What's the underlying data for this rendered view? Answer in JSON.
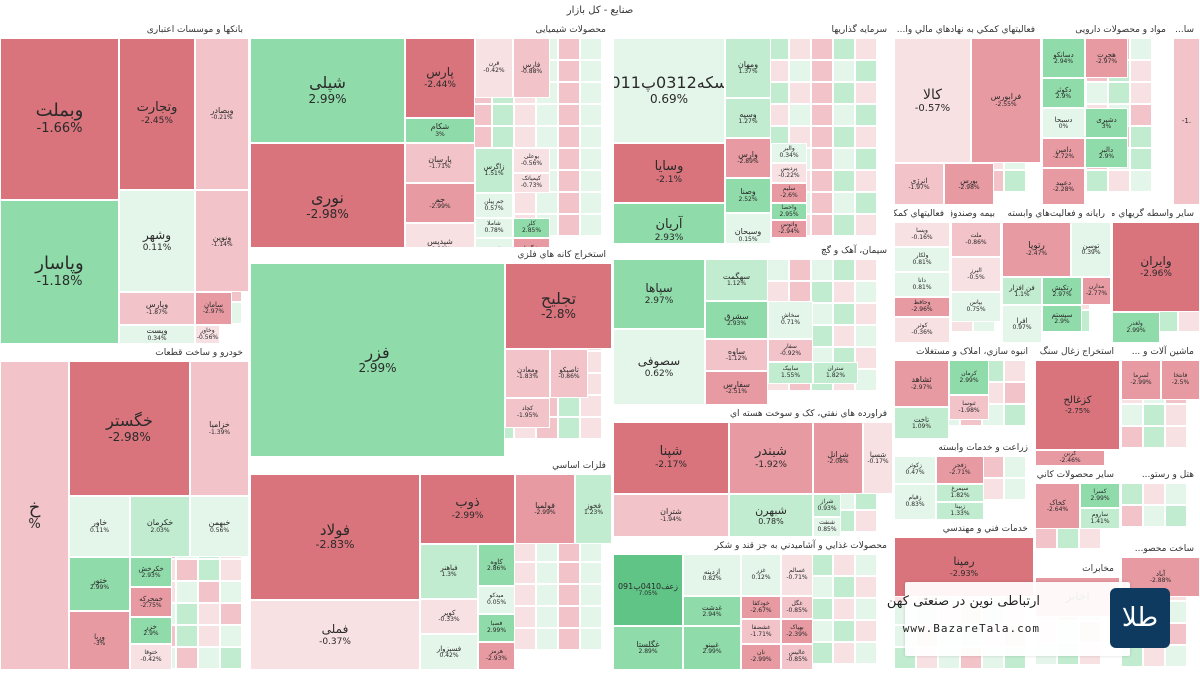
{
  "page_title": "صنایع - کل بازار",
  "sectors": [
    {
      "id": "banks",
      "label": "بانکها و موسسات اعتباری",
      "tiles": [
        {
          "n": "وبملت",
          "p": "-1.66%",
          "c": "r3",
          "fs": 18
        },
        {
          "n": "وپاسار",
          "p": "-1.18%",
          "c": "g2",
          "fs": 18
        },
        {
          "n": "وتجارت",
          "p": "-2.45%",
          "c": "r3",
          "fs": 13
        },
        {
          "n": "وبصادر",
          "p": "-0.21%",
          "c": "r1",
          "fs": 8
        },
        {
          "n": "وشهر",
          "p": "0.11%",
          "c": "g0",
          "fs": 12
        },
        {
          "n": "ونوین",
          "p": "-1.14%",
          "c": "r1",
          "fs": 8
        },
        {
          "n": "وپارس",
          "p": "-1.87%",
          "c": "r1",
          "fs": 8
        },
        {
          "n": "سامان",
          "p": "-2.97%",
          "c": "r2",
          "fs": 7
        },
        {
          "n": "وپست",
          "p": "0.34%",
          "c": "g0",
          "fs": 8
        },
        {
          "n": "وخاور",
          "p": "-0.56%",
          "c": "r0",
          "fs": 6
        }
      ]
    },
    {
      "id": "chem",
      "label": "محصولات شیمیایی",
      "tiles": [
        {
          "n": "شپلی",
          "p": "2.99%",
          "c": "g2",
          "fs": 16
        },
        {
          "n": "نوری",
          "p": "-2.98%",
          "c": "r3",
          "fs": 16
        },
        {
          "n": "پارس",
          "p": "-2.44%",
          "c": "r3",
          "fs": 12
        },
        {
          "n": "شکام",
          "p": "3%",
          "c": "g2",
          "fs": 8
        },
        {
          "n": "پارسان",
          "p": "-1.71%",
          "c": "r1",
          "fs": 8
        },
        {
          "n": "جم",
          "p": "-2.99%",
          "c": "r2",
          "fs": 8
        },
        {
          "n": "شپدیس",
          "p": "-0.39%",
          "c": "r0",
          "fs": 8
        },
        {
          "n": "فارس",
          "p": "-0.88%",
          "c": "r1",
          "fs": 7
        },
        {
          "n": "قرن",
          "p": "-0.42%",
          "c": "r0",
          "fs": 6
        },
        {
          "n": "زاگرس",
          "p": "1.51%",
          "c": "g1",
          "fs": 7
        },
        {
          "n": "بوعلی",
          "p": "-0.56%",
          "c": "r0",
          "fs": 6
        },
        {
          "n": "کیمیاتک",
          "p": "-0.73%",
          "c": "r0",
          "fs": 6
        },
        {
          "n": "جم پیلن",
          "p": "0.57%",
          "c": "g0",
          "fs": 6
        },
        {
          "n": "شاملا",
          "p": "0.78%",
          "c": "g0",
          "fs": 6
        },
        {
          "n": "شیمیر",
          "p": "0.83%",
          "c": "g0",
          "fs": 6
        },
        {
          "n": "کلر",
          "p": "2.85%",
          "c": "g2",
          "fs": 6
        },
        {
          "n": "شگویا",
          "p": "-2.24%",
          "c": "r2",
          "fs": 6
        }
      ]
    },
    {
      "id": "invest",
      "label": "سرمایه گذاریها",
      "tiles": [
        {
          "n": "سکه0312پ011",
          "p": "0.69%",
          "c": "g0",
          "fs": 16
        },
        {
          "n": "وسایا",
          "p": "-2.1%",
          "c": "r3",
          "fs": 13
        },
        {
          "n": "آریان",
          "p": "2.93%",
          "c": "g2",
          "fs": 13
        },
        {
          "n": "ومهان",
          "p": "1.37%",
          "c": "g1",
          "fs": 8
        },
        {
          "n": "وسپه",
          "p": "1.27%",
          "c": "g1",
          "fs": 8
        },
        {
          "n": "وارس",
          "p": "-2.89%",
          "c": "r2",
          "fs": 8
        },
        {
          "n": "وصنا",
          "p": "2.52%",
          "c": "g2",
          "fs": 8
        },
        {
          "n": "وسبحان",
          "p": "0.15%",
          "c": "g0",
          "fs": 8
        },
        {
          "n": "والبر",
          "p": "0.34%",
          "c": "g0",
          "fs": 6
        },
        {
          "n": "پردیس",
          "p": "-0.22%",
          "c": "r0",
          "fs": 6
        },
        {
          "n": "سلیم",
          "p": "-2.6%",
          "c": "r2",
          "fs": 6
        },
        {
          "n": "واحصا",
          "p": "2.95%",
          "c": "g2",
          "fs": 6
        },
        {
          "n": "وآتوس",
          "p": "-2.94%",
          "c": "r2",
          "fs": 6
        }
      ]
    },
    {
      "id": "health",
      "label": "فعالیتهاي کمکي به نهادهاي مالي وا...",
      "tiles": [
        {
          "n": "کالا",
          "p": "-0.57%",
          "c": "r0",
          "fs": 14
        },
        {
          "n": "فرابورس",
          "p": "-2.55%",
          "c": "r2",
          "fs": 8
        },
        {
          "n": "انرژی",
          "p": "-1.97%",
          "c": "r1",
          "fs": 7
        },
        {
          "n": "بورس",
          "p": "-2.98%",
          "c": "r2",
          "fs": 7
        }
      ]
    },
    {
      "id": "pharma",
      "label": "مواد و محصولات دارویی",
      "tiles": [
        {
          "n": "دسانکو",
          "p": "2.94%",
          "c": "g2",
          "fs": 7
        },
        {
          "n": "هجرت",
          "p": "-2.97%",
          "c": "r2",
          "fs": 7
        },
        {
          "n": "دکوثر",
          "p": "2.9%",
          "c": "g2",
          "fs": 7
        },
        {
          "n": "دسبحا",
          "p": "0%",
          "c": "g0",
          "fs": 7
        },
        {
          "n": "دشیری",
          "p": "3%",
          "c": "g2",
          "fs": 7
        },
        {
          "n": "دامین",
          "p": "-2.72%",
          "c": "r2",
          "fs": 7
        },
        {
          "n": "دالبر",
          "p": "2.9%",
          "c": "g2",
          "fs": 7
        },
        {
          "n": "دعبید",
          "p": "-2.28%",
          "c": "r2",
          "fs": 7
        }
      ]
    },
    {
      "id": "misc",
      "label": "سا...",
      "tiles": [
        {
          "n": "",
          "p": "-1.",
          "c": "r1",
          "fs": 10
        }
      ]
    },
    {
      "id": "mining",
      "label": "استخراج کانه هاي فلزي",
      "tiles": [
        {
          "n": "فزر",
          "p": "2.99%",
          "c": "g2",
          "fs": 16
        },
        {
          "n": "تجلیح",
          "p": "-2.8%",
          "c": "r3",
          "fs": 16
        },
        {
          "n": "ومعادن",
          "p": "-1.83%",
          "c": "r1",
          "fs": 7
        },
        {
          "n": "تاصیکو",
          "p": "-0.86%",
          "c": "r1",
          "fs": 7
        },
        {
          "n": "کچاد",
          "p": "-1.95%",
          "c": "r1",
          "fs": 6
        }
      ]
    },
    {
      "id": "cement",
      "label": "سیمان، آهک و گچ",
      "tiles": [
        {
          "n": "سپاها",
          "p": "2.97%",
          "c": "g2",
          "fs": 12
        },
        {
          "n": "سصوفی",
          "p": "0.62%",
          "c": "g0",
          "fs": 12
        },
        {
          "n": "سهگمت",
          "p": "1.12%",
          "c": "g1",
          "fs": 8
        },
        {
          "n": "سشرق",
          "p": "2.93%",
          "c": "g2",
          "fs": 8
        },
        {
          "n": "ساوه",
          "p": "-1.12%",
          "c": "r1",
          "fs": 8
        },
        {
          "n": "سفارس",
          "p": "-2.51%",
          "c": "r2",
          "fs": 8
        },
        {
          "n": "سخاش",
          "p": "0.71%",
          "c": "g0",
          "fs": 6
        },
        {
          "n": "سفار",
          "p": "-0.92%",
          "c": "r1",
          "fs": 6
        },
        {
          "n": "سابیک",
          "p": "1.55%",
          "c": "g1",
          "fs": 6
        },
        {
          "n": "ستران",
          "p": "1.82%",
          "c": "g1",
          "fs": 6
        }
      ]
    },
    {
      "id": "auto",
      "label": "خودرو و ساخت قطعات",
      "tiles": [
        {
          "n": "خ",
          "p": "%",
          "c": "r1",
          "fs": 18
        },
        {
          "n": "خگستر",
          "p": "-2.98%",
          "c": "r3",
          "fs": 16
        },
        {
          "n": "خزامیا",
          "p": "-1.39%",
          "c": "r1",
          "fs": 8
        },
        {
          "n": "خاور",
          "p": "0.11%",
          "c": "g0",
          "fs": 8
        },
        {
          "n": "خکرمان",
          "p": "2.03%",
          "c": "g1",
          "fs": 8
        },
        {
          "n": "خبهمن",
          "p": "0.56%",
          "c": "g0",
          "fs": 8
        },
        {
          "n": "ختور",
          "p": "2.99%",
          "c": "g2",
          "fs": 8
        },
        {
          "n": "خکرخش",
          "p": "2.93%",
          "c": "g2",
          "fs": 7
        },
        {
          "n": "خمحرکه",
          "p": "-2.75%",
          "c": "r2",
          "fs": 7
        },
        {
          "n": "وربا",
          "p": "-3%",
          "c": "r2",
          "fs": 7
        },
        {
          "n": "خزر",
          "p": "2.9%",
          "c": "g2",
          "fs": 7
        },
        {
          "n": "ختوقا",
          "p": "-0.42%",
          "c": "r0",
          "fs": 6
        }
      ]
    },
    {
      "id": "metals",
      "label": "فلزات اساسي",
      "tiles": [
        {
          "n": "فولاد",
          "p": "-2.83%",
          "c": "r3",
          "fs": 15
        },
        {
          "n": "فملی",
          "p": "-0.37%",
          "c": "r0",
          "fs": 12
        },
        {
          "n": "ذوب",
          "p": "-2.99%",
          "c": "r3",
          "fs": 13
        },
        {
          "n": "فولمیا",
          "p": "-2.99%",
          "c": "r2",
          "fs": 8
        },
        {
          "n": "فخوز",
          "p": "1.23%",
          "c": "g1",
          "fs": 7
        },
        {
          "n": "فباهنر",
          "p": "1.3%",
          "c": "g1",
          "fs": 7
        },
        {
          "n": "کاوه",
          "p": "2.86%",
          "c": "g2",
          "fs": 7
        },
        {
          "n": "کویر",
          "p": "-0.33%",
          "c": "r0",
          "fs": 7
        },
        {
          "n": "میدکو",
          "p": "0.05%",
          "c": "g0",
          "fs": 6
        },
        {
          "n": "فسبزوار",
          "p": "0.42%",
          "c": "g0",
          "fs": 7
        },
        {
          "n": "فصبا",
          "p": "2.99%",
          "c": "g2",
          "fs": 6
        },
        {
          "n": "هرمز",
          "p": "-2.93%",
          "c": "r2",
          "fs": 6
        }
      ]
    },
    {
      "id": "oil",
      "label": "فراورده هاي نفتي، کک و سوخت هسته اي",
      "tiles": [
        {
          "n": "شپنا",
          "p": "-2.17%",
          "c": "r3",
          "fs": 13
        },
        {
          "n": "شبندر",
          "p": "-1.92%",
          "c": "r2",
          "fs": 13
        },
        {
          "n": "شرانل",
          "p": "-2.08%",
          "c": "r2",
          "fs": 8
        },
        {
          "n": "شسپا",
          "p": "-0.17%",
          "c": "r0",
          "fs": 7
        },
        {
          "n": "شتران",
          "p": "-1.94%",
          "c": "r1",
          "fs": 8
        },
        {
          "n": "شبهرن",
          "p": "0.78%",
          "c": "g1",
          "fs": 11
        },
        {
          "n": "شراز",
          "p": "0.93%",
          "c": "g1",
          "fs": 6
        },
        {
          "n": "شنفت",
          "p": "0.85%",
          "c": "g0",
          "fs": 6
        }
      ]
    },
    {
      "id": "food",
      "label": "محصولات غذايي و آشاميدني به جز قند و شکر",
      "tiles": [
        {
          "n": "زعف0410پ091",
          "p": "7.05%",
          "c": "g3",
          "fs": 8
        },
        {
          "n": "غگلستا",
          "p": "2.89%",
          "c": "g2",
          "fs": 8
        },
        {
          "n": "ازدینه",
          "p": "0.82%",
          "c": "g0",
          "fs": 7
        },
        {
          "n": "غدشت",
          "p": "2.94%",
          "c": "g2",
          "fs": 7
        },
        {
          "n": "غبینو",
          "p": "2.99%",
          "c": "g2",
          "fs": 7
        },
        {
          "n": "غزر",
          "p": "0.12%",
          "c": "g0",
          "fs": 6
        },
        {
          "n": "خودکفا",
          "p": "-2.67%",
          "c": "r2",
          "fs": 6
        },
        {
          "n": "غشضفا",
          "p": "-1.71%",
          "c": "r1",
          "fs": 6
        },
        {
          "n": "نان",
          "p": "-2.99%",
          "c": "r2",
          "fs": 6
        },
        {
          "n": "غسالم",
          "p": "-0.71%",
          "c": "r0",
          "fs": 6
        },
        {
          "n": "غگل",
          "p": "-0.85%",
          "c": "r1",
          "fs": 6
        },
        {
          "n": "بهپاک",
          "p": "-2.39%",
          "c": "r2",
          "fs": 6
        },
        {
          "n": "عالیس",
          "p": "-0.85%",
          "c": "r1",
          "fs": 6
        }
      ]
    },
    {
      "id": "brokers",
      "label": "فعالیتهاي کمکي به نهادهاي مالي واسط",
      "tiles": [
        {
          "n": "ویسا",
          "p": "-0.16%",
          "c": "r0",
          "fs": 6
        },
        {
          "n": "ولکار",
          "p": "0.81%",
          "c": "g0",
          "fs": 6
        },
        {
          "n": "دانا",
          "p": "0.81%",
          "c": "g0",
          "fs": 6
        },
        {
          "n": "وحافظ",
          "p": "-2.96%",
          "c": "r2",
          "fs": 6
        },
        {
          "n": "کوثر",
          "p": "-0.36%",
          "c": "r0",
          "fs": 6
        }
      ]
    },
    {
      "id": "insurance",
      "label": "بیمه وصندوق بازنشستگي",
      "tiles": [
        {
          "n": "ملت",
          "p": "-0.86%",
          "c": "r1",
          "fs": 6
        },
        {
          "n": "البرز",
          "p": "-0.5%",
          "c": "r0",
          "fs": 6
        },
        {
          "n": "بپاس",
          "p": "0.75%",
          "c": "g0",
          "fs": 6
        }
      ]
    },
    {
      "id": "it",
      "label": "رايانه و فعاليت‌هاي وابسته",
      "tiles": [
        {
          "n": "رتوپا",
          "p": "-2.47%",
          "c": "r2",
          "fs": 9
        },
        {
          "n": "فن افزار",
          "p": "1.1%",
          "c": "g1",
          "fs": 7
        },
        {
          "n": "افرا",
          "p": "0.97%",
          "c": "g0",
          "fs": 7
        },
        {
          "n": "رتکیش",
          "p": "2.97%",
          "c": "g2",
          "fs": 7
        },
        {
          "n": "سیستم",
          "p": "2.9%",
          "c": "g2",
          "fs": 7
        },
        {
          "n": "توسن",
          "p": "0.39%",
          "c": "g0",
          "fs": 7
        },
        {
          "n": "مدارن",
          "p": "-2.77%",
          "c": "r2",
          "fs": 6
        }
      ]
    },
    {
      "id": "other_fin",
      "label": "ساير واسطه گريهاي مالي",
      "tiles": [
        {
          "n": "وایران",
          "p": "-2.96%",
          "c": "r3",
          "fs": 12
        },
        {
          "n": "ولغدر",
          "p": "2.99%",
          "c": "g2",
          "fs": 6
        }
      ]
    },
    {
      "id": "tile_industry",
      "label": "انبوه سازي، املاک و مستغلات",
      "tiles": [
        {
          "n": "ثشاهد",
          "p": "-2.97%",
          "c": "r2",
          "fs": 8
        },
        {
          "n": "کرمان",
          "p": "2.99%",
          "c": "g2",
          "fs": 6
        },
        {
          "n": "تاخت",
          "p": "1.09%",
          "c": "g1",
          "fs": 7
        },
        {
          "n": "ثنوسا",
          "p": "-1.98%",
          "c": "r1",
          "fs": 6
        }
      ]
    },
    {
      "id": "stone",
      "label": "استخراج زغال سنگ",
      "tiles": [
        {
          "n": "کزغالح",
          "p": "-2.75%",
          "c": "r3",
          "fs": 10
        },
        {
          "n": "کربن",
          "p": "-2.46%",
          "c": "r2",
          "fs": 6
        }
      ]
    },
    {
      "id": "machinery",
      "label": "ماشین آلات و ...",
      "tiles": [
        {
          "n": "لسرما",
          "p": "-2.99%",
          "c": "r2",
          "fs": 6
        },
        {
          "n": "فانتخا",
          "p": "-2.5%",
          "c": "r2",
          "fs": 6
        }
      ]
    },
    {
      "id": "agri",
      "label": "زراعت و خدمات وابسته",
      "tiles": [
        {
          "n": "زکوثر",
          "p": "0.47%",
          "c": "g0",
          "fs": 6
        },
        {
          "n": "زقیام",
          "p": "0.83%",
          "c": "g0",
          "fs": 6
        },
        {
          "n": "زفجر",
          "p": "-2.71%",
          "c": "r2",
          "fs": 6
        },
        {
          "n": "سیمرغ",
          "p": "1.82%",
          "c": "g1",
          "fs": 6
        },
        {
          "n": "زبینا",
          "p": "1.33%",
          "c": "g1",
          "fs": 6
        }
      ]
    },
    {
      "id": "hotel",
      "label": "هتل و رستو...",
      "tiles": []
    },
    {
      "id": "nonmetal",
      "label": "ساير محصولات کاني ...",
      "tiles": [
        {
          "n": "کخاک",
          "p": "-2.64%",
          "c": "r2",
          "fs": 7
        },
        {
          "n": "کسرا",
          "p": "2.99%",
          "c": "g2",
          "fs": 6
        },
        {
          "n": "ساروم",
          "p": "1.41%",
          "c": "g1",
          "fs": 6
        }
      ]
    },
    {
      "id": "engineering",
      "label": "خدمات فني و مهندسي",
      "tiles": [
        {
          "n": "رمپنا",
          "p": "-2.93%",
          "c": "r3",
          "fs": 11
        }
      ]
    },
    {
      "id": "telecom",
      "label": "مخابرات",
      "tiles": [
        {
          "n": "اخابر",
          "p": "",
          "c": "r2",
          "fs": 12
        }
      ]
    },
    {
      "id": "construction",
      "label": "ساخت محصو...",
      "tiles": [
        {
          "n": "آباد",
          "p": "-2.88%",
          "c": "r2",
          "fs": 7
        }
      ]
    }
  ],
  "banner": {
    "text": "ارتباطی نوین در صنعتی کهن",
    "url": "www.BazareTala.com",
    "logo": "طلا"
  }
}
